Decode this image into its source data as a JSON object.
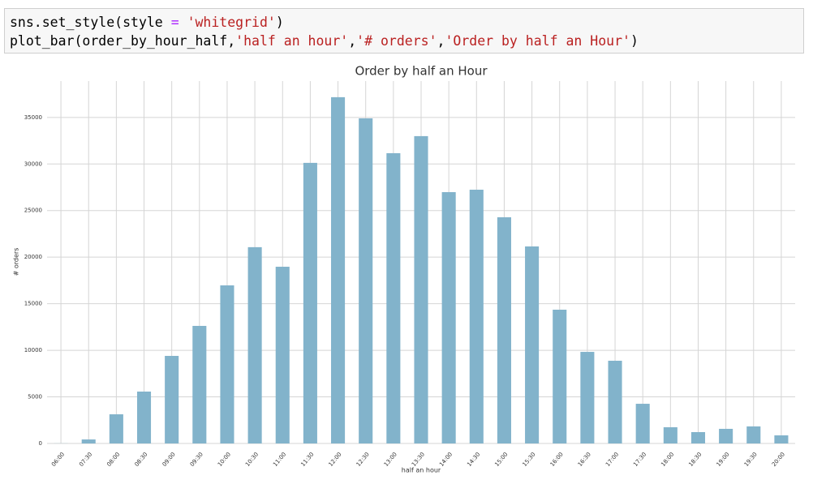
{
  "code": {
    "lines": [
      [
        {
          "text": "sns.set_style(style ",
          "kind": "plain"
        },
        {
          "text": "=",
          "kind": "operator"
        },
        {
          "text": " ",
          "kind": "plain"
        },
        {
          "text": "'whitegrid'",
          "kind": "string"
        },
        {
          "text": ")",
          "kind": "plain"
        }
      ],
      [
        {
          "text": "plot_bar(order_by_hour_half,",
          "kind": "plain"
        },
        {
          "text": "'half an hour'",
          "kind": "string"
        },
        {
          "text": ",",
          "kind": "plain"
        },
        {
          "text": "'# orders'",
          "kind": "string"
        },
        {
          "text": ",",
          "kind": "plain"
        },
        {
          "text": "'Order by half an Hour'",
          "kind": "string"
        },
        {
          "text": ")",
          "kind": "plain"
        }
      ]
    ]
  },
  "chart_data": {
    "type": "bar",
    "title": "Order by half an Hour",
    "x_label": "half an hour",
    "y_label": "# orders",
    "categories": [
      "06:00",
      "07:30",
      "08:00",
      "08:30",
      "09:00",
      "09:30",
      "10:00",
      "10:30",
      "11:00",
      "11:30",
      "12:00",
      "12:30",
      "13:00",
      "13:30",
      "14:00",
      "14:30",
      "15:00",
      "15:30",
      "16:00",
      "16:30",
      "17:00",
      "17:30",
      "18:00",
      "18:30",
      "19:00",
      "19:30",
      "20:00"
    ],
    "values": [
      10,
      430,
      3130,
      5570,
      9400,
      12620,
      16970,
      21070,
      18970,
      30120,
      37170,
      34900,
      31160,
      32990,
      26980,
      27240,
      24280,
      21150,
      14360,
      9830,
      8880,
      4260,
      1740,
      1220,
      1570,
      1830,
      870
    ],
    "color": "#82b3cb",
    "ylim": [
      0,
      38900
    ],
    "yticks": [
      0,
      5000,
      10000,
      15000,
      20000,
      25000,
      30000,
      35000
    ],
    "grid": true
  }
}
